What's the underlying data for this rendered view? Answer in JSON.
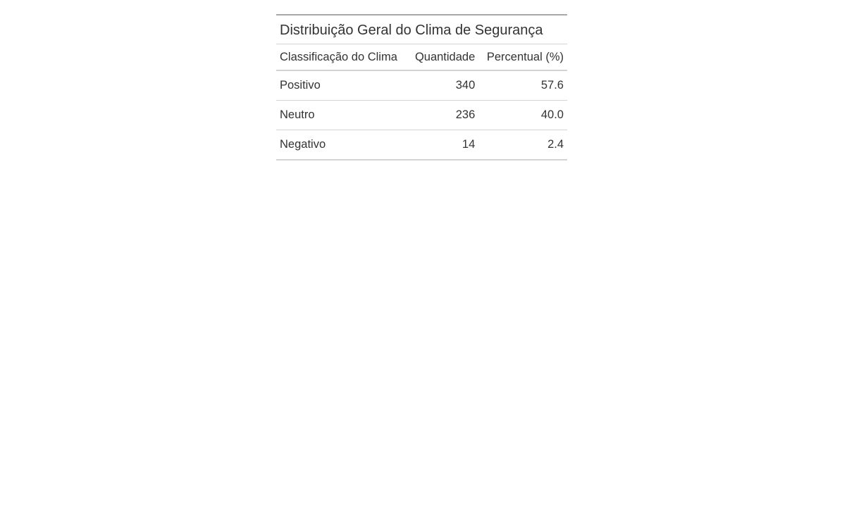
{
  "table": {
    "title": "Distribuição Geral do Clima de Segurança",
    "columns": [
      "Classificação do Clima",
      "Quantidade",
      "Percentual (%)"
    ],
    "rows": [
      [
        "Positivo",
        "340",
        "57.6"
      ],
      [
        "Neutro",
        "236",
        "40.0"
      ],
      [
        "Negativo",
        "14",
        "2.4"
      ]
    ]
  }
}
